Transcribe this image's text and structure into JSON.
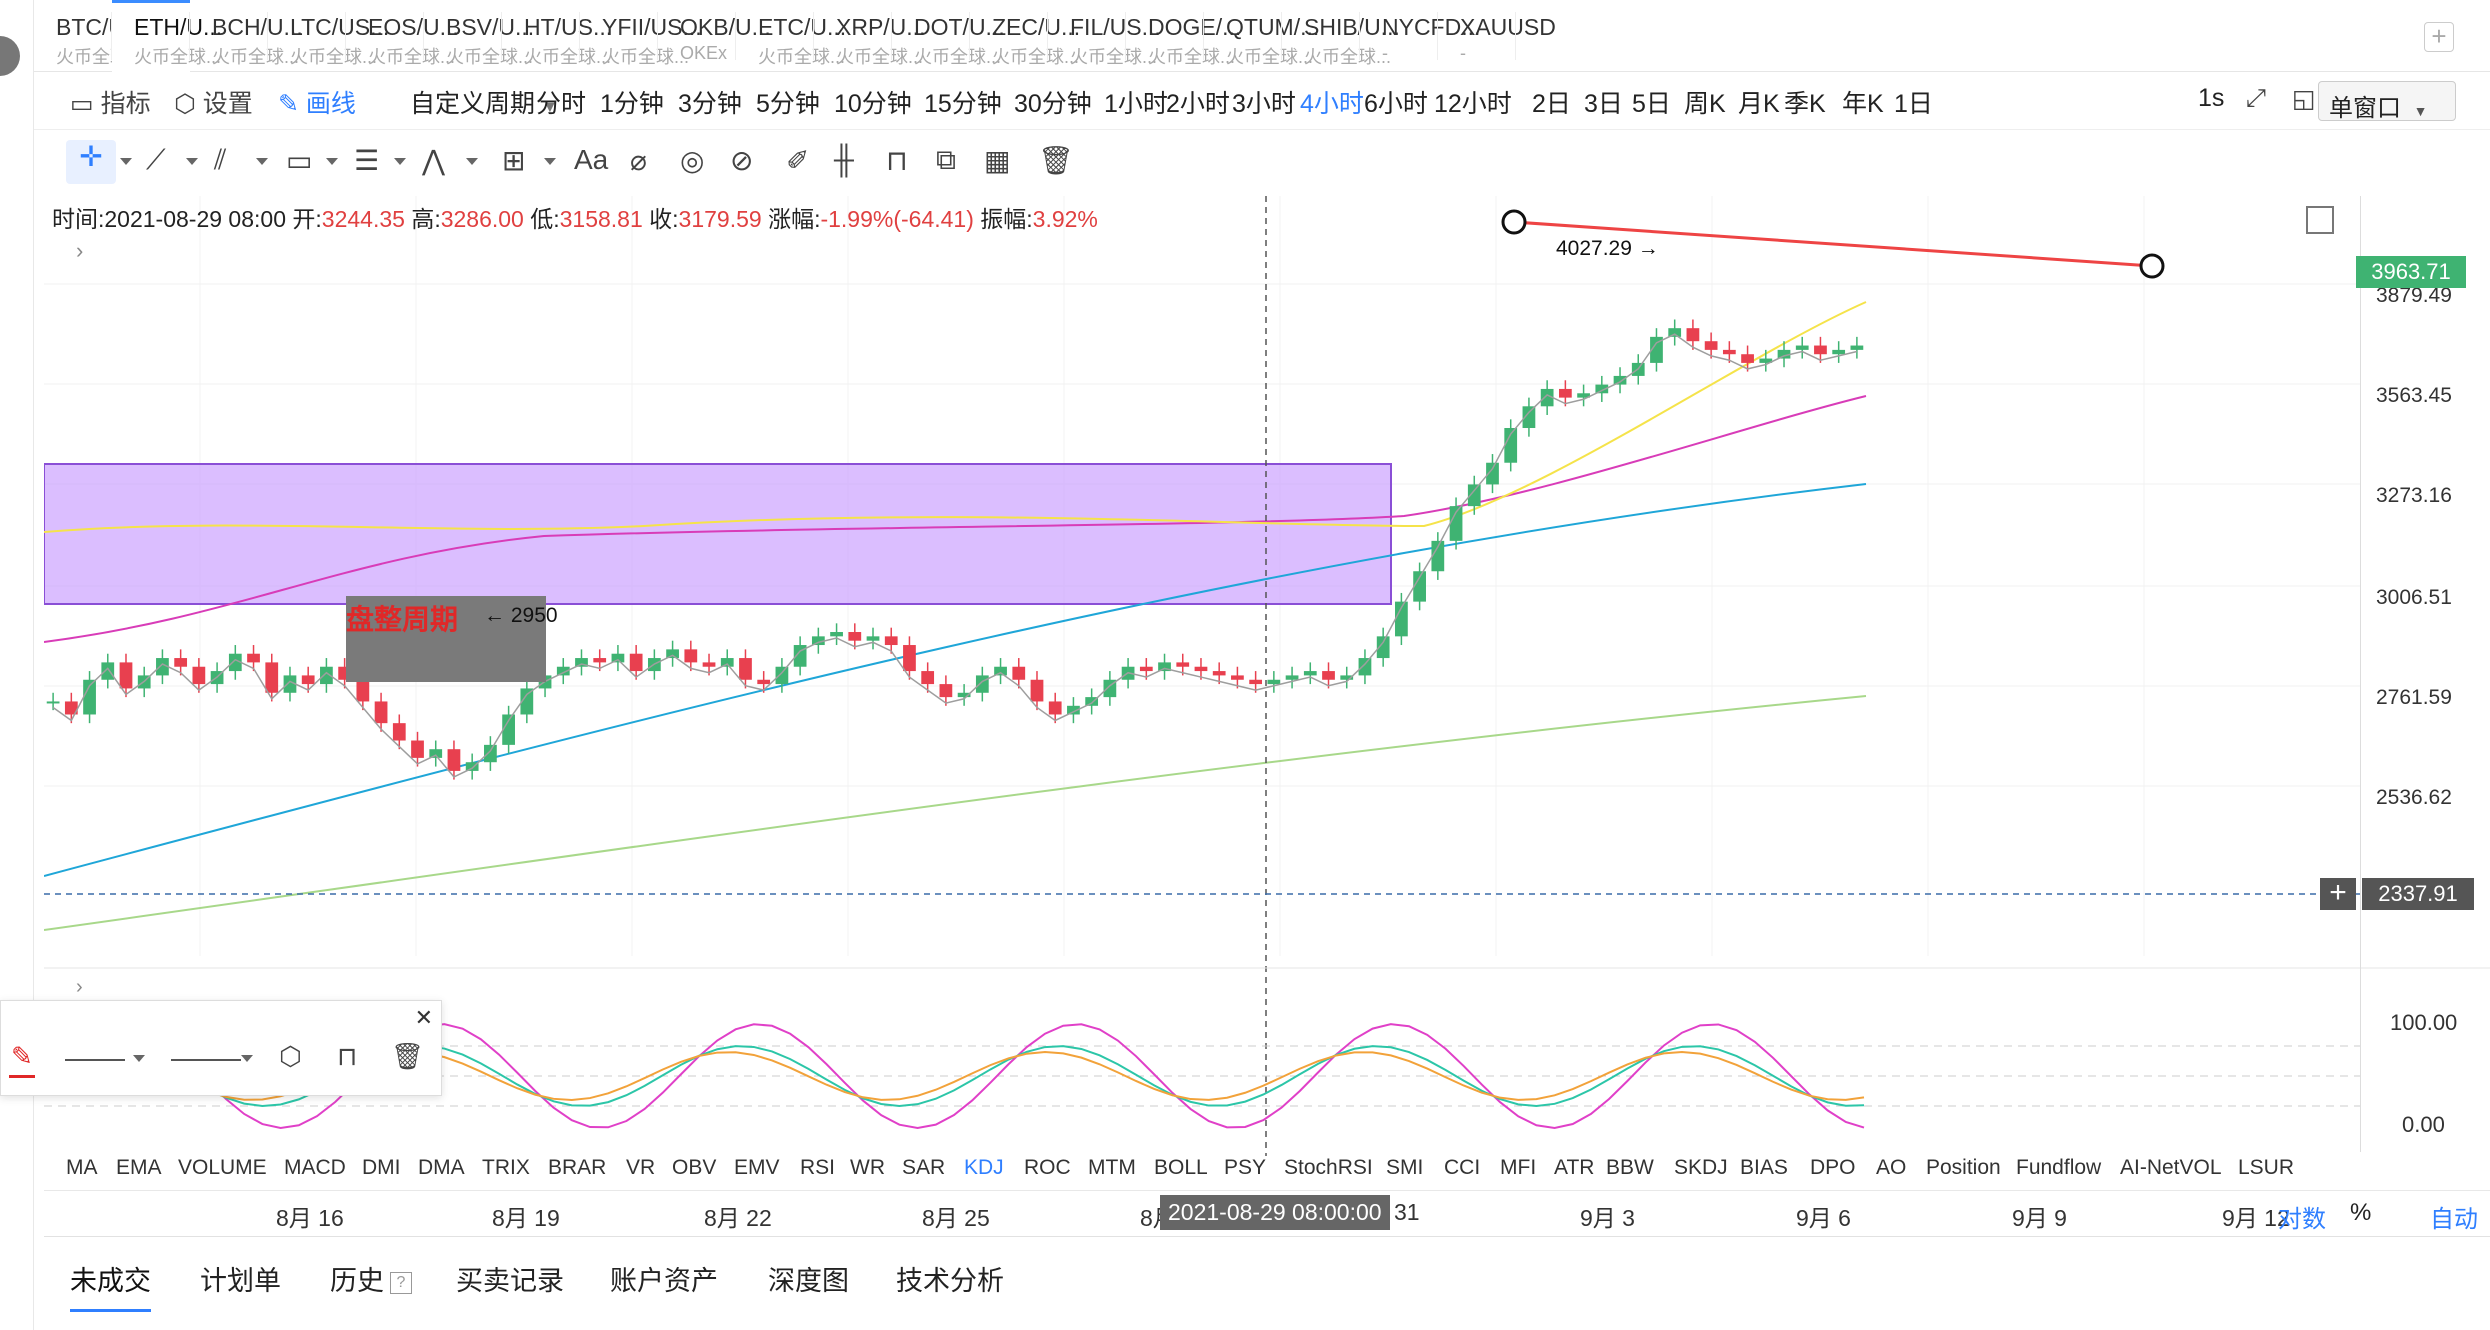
{
  "tabs": [
    {
      "symbol": "BTC/U...",
      "exchange": "火币全球..."
    },
    {
      "symbol": "ETH/U...",
      "exchange": "火币全球..."
    },
    {
      "symbol": "BCH/U...",
      "exchange": "火币全球..."
    },
    {
      "symbol": "LTC/US...",
      "exchange": "火币全球..."
    },
    {
      "symbol": "EOS/U...",
      "exchange": "火币全球..."
    },
    {
      "symbol": "BSV/U...",
      "exchange": "火币全球..."
    },
    {
      "symbol": "HT/US...",
      "exchange": "火币全球..."
    },
    {
      "symbol": "YFII/US...",
      "exchange": "火币全球..."
    },
    {
      "symbol": "OKB/U...",
      "exchange": "OKEx"
    },
    {
      "symbol": "ETC/U...",
      "exchange": "火币全球..."
    },
    {
      "symbol": "XRP/U...",
      "exchange": "火币全球..."
    },
    {
      "symbol": "DOT/U...",
      "exchange": "火币全球..."
    },
    {
      "symbol": "ZEC/U...",
      "exchange": "火币全球..."
    },
    {
      "symbol": "FIL/US...",
      "exchange": "火币全球..."
    },
    {
      "symbol": "DOGE/...",
      "exchange": "火币全球..."
    },
    {
      "symbol": "QTUM/...",
      "exchange": "火币全球..."
    },
    {
      "symbol": "SHIB/U...",
      "exchange": "火币全球..."
    },
    {
      "symbol": "NYCFD...",
      "exchange": "-"
    },
    {
      "symbol": "XAUUSD",
      "exchange": "-"
    }
  ],
  "active_tab": 1,
  "toolbar": {
    "indicators": "指标",
    "settings": "设置",
    "draw": "画线",
    "custom_period": "自定义周期",
    "periods": [
      "分时",
      "1分钟",
      "3分钟",
      "5分钟",
      "10分钟",
      "15分钟",
      "30分钟",
      "1小时",
      "2小时",
      "3小时",
      "4小时",
      "6小时",
      "12小时",
      "2日",
      "3日",
      "5日",
      "周K",
      "月K",
      "季K",
      "年K",
      "1日"
    ],
    "active_period": "4小时",
    "refresh": "1s",
    "window_mode": "单窗口"
  },
  "draw_tools": {
    "text_tool": "Aa"
  },
  "ohlc": {
    "time_label": "时间:",
    "time": "2021-08-29 08:00",
    "open_label": "开:",
    "open": "3244.35",
    "high_label": "高:",
    "high": "3286.00",
    "low_label": "低:",
    "low": "3158.81",
    "close_label": "收:",
    "close": "3179.59",
    "change_label": "涨幅:",
    "change": "-1.99%(-64.41)",
    "amp_label": "振幅:",
    "amp": "3.92%"
  },
  "price_axis": [
    "3879.49",
    "3563.45",
    "3273.16",
    "3006.51",
    "2761.59",
    "2536.62"
  ],
  "current_price": "3963.71",
  "crosshair_price": "2337.91",
  "annotations": {
    "box_label": "盘整周期",
    "low_mark": "← 2950",
    "high_mark": "4027.29 →"
  },
  "sub_axis": [
    "100.00",
    "0.00"
  ],
  "indicators": [
    "MA",
    "EMA",
    "VOLUME",
    "MACD",
    "DMI",
    "DMA",
    "TRIX",
    "BRAR",
    "VR",
    "OBV",
    "EMV",
    "RSI",
    "WR",
    "SAR",
    "KDJ",
    "ROC",
    "MTM",
    "BOLL",
    "PSY",
    "StochRSI",
    "SMI",
    "CCI",
    "MFI",
    "ATR",
    "BBW",
    "SKDJ",
    "BIAS",
    "DPO",
    "AO",
    "Position",
    "Fundflow",
    "AI-NetVOL",
    "LSUR"
  ],
  "active_indicator": "KDJ",
  "x_dates": [
    "8月 16",
    "8月 19",
    "8月 22",
    "8月 25",
    "8月",
    "31",
    "9月 3",
    "9月 6",
    "9月 9",
    "9月 12"
  ],
  "crosshair_time": "2021-08-29 08:00:00",
  "axis_options": {
    "log": "对数",
    "percent": "%",
    "auto": "自动"
  },
  "bottom_tabs": [
    "未成交",
    "计划单",
    "历史",
    "买卖记录",
    "账户资产",
    "深度图",
    "技术分析"
  ],
  "history_help": "?",
  "colors": {
    "up": "#3fb372",
    "down": "#e8404f",
    "ma_fast": "#9e9e9e",
    "ma_yellow": "#f5e34a",
    "ma_magenta": "#d83cb8",
    "ma_cyan": "#1fa6d8",
    "ma_green": "#a8d88a",
    "box_fill": "#c89bff",
    "trendline": "#ee4444",
    "accent": "#2f7fff"
  }
}
